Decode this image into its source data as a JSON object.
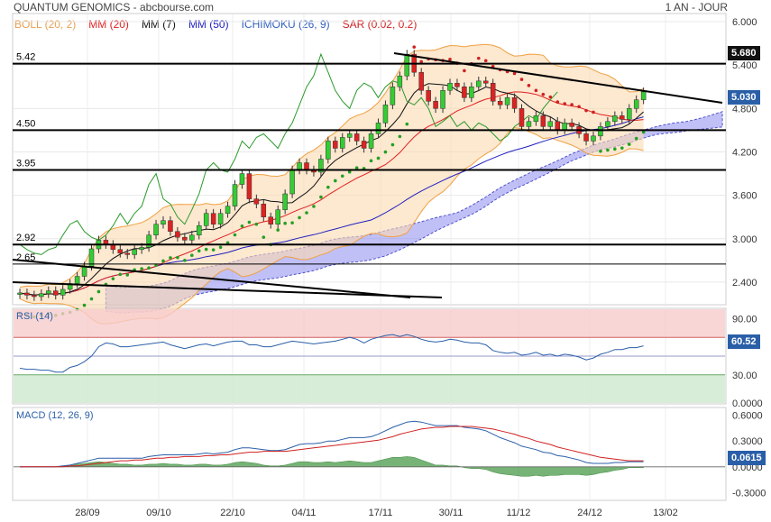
{
  "header": {
    "title": "QUANTUM GENOMICS - abcbourse.com",
    "period": "1 AN - JOUR"
  },
  "indicators": [
    {
      "label": "BOLL (20, 2)",
      "color": "#f0a040"
    },
    {
      "label": "MM (20)",
      "color": "#e02020"
    },
    {
      "label": "MM (7)",
      "color": "#111111"
    },
    {
      "label": "MM (50)",
      "color": "#2020c0"
    },
    {
      "label": "ICHIMOKU (26, 9)",
      "color": "#3060c0"
    },
    {
      "label": "SAR (0.02, 0.2)",
      "color": "#d02020"
    }
  ],
  "chart_data": [
    {
      "type": "candlestick",
      "title": "",
      "ylim": [
        2.1,
        6.1
      ],
      "y_ticks": [
        "6.000",
        "5.400",
        "4.800",
        "4.200",
        "3.600",
        "3.000",
        "2.400"
      ],
      "x_ticks": [
        "28/09",
        "09/10",
        "22/10",
        "04/11",
        "17/11",
        "30/11",
        "11/12",
        "24/12",
        "13/02"
      ],
      "last_price_label": "5.030",
      "resistance_label": "5.680",
      "levels": [
        {
          "label": "5.42",
          "value": 5.42
        },
        {
          "label": "4.50",
          "value": 4.5
        },
        {
          "label": "3.95",
          "value": 3.95
        },
        {
          "label": "2.92",
          "value": 2.92
        },
        {
          "label": "2.65",
          "value": 2.65
        }
      ],
      "close": [
        2.25,
        2.22,
        2.2,
        2.24,
        2.28,
        2.22,
        2.3,
        2.38,
        2.48,
        2.62,
        2.86,
        2.98,
        2.92,
        2.85,
        2.8,
        2.78,
        2.85,
        2.88,
        3.05,
        3.2,
        3.25,
        3.1,
        3.02,
        2.98,
        3.05,
        3.18,
        3.35,
        3.2,
        3.35,
        3.45,
        3.75,
        3.9,
        3.55,
        3.48,
        3.3,
        3.2,
        3.4,
        3.62,
        3.95,
        4.05,
        3.95,
        3.92,
        4.1,
        4.35,
        4.25,
        4.4,
        4.45,
        4.35,
        4.25,
        4.45,
        4.6,
        4.85,
        5.1,
        5.25,
        5.55,
        5.3,
        5.05,
        4.9,
        4.8,
        5.05,
        5.15,
        5.1,
        4.95,
        5.1,
        5.18,
        5.15,
        4.9,
        4.85,
        4.95,
        4.8,
        4.55,
        4.62,
        4.7,
        4.55,
        4.62,
        4.5,
        4.6,
        4.55,
        4.45,
        4.35,
        4.42,
        4.55,
        4.62,
        4.7,
        4.65,
        4.8,
        4.92,
        5.03
      ],
      "rsi": {
        "label": "RSI (14)",
        "last_label": "60.52",
        "y_ticks": [
          "90.00",
          "30.00",
          "0.0000"
        ],
        "values": [
          37,
          36,
          36,
          35,
          35,
          33,
          33,
          38,
          40,
          44,
          50,
          60,
          64,
          63,
          60,
          60,
          61,
          62,
          63,
          64,
          65,
          62,
          60,
          58,
          60,
          62,
          63,
          61,
          63,
          65,
          66,
          66,
          62,
          62,
          60,
          60,
          62,
          64,
          66,
          65,
          64,
          63,
          64,
          65,
          66,
          68,
          70,
          68,
          64,
          68,
          70,
          72,
          73,
          71,
          73,
          71,
          68,
          66,
          65,
          66,
          68,
          67,
          65,
          64,
          64,
          62,
          56,
          54,
          53,
          54,
          51,
          52,
          54,
          51,
          52,
          50,
          52,
          51,
          49,
          46,
          48,
          52,
          54,
          57,
          57,
          59,
          59,
          61
        ]
      },
      "macd": {
        "label": "MACD (12, 26, 9)",
        "last_label": "0.0615",
        "y_ticks": [
          "0.6000",
          "0.3000",
          "0.0000",
          "-0.3000"
        ],
        "macd": [
          0.0,
          0.0,
          0.0,
          0.0,
          0.0,
          0.0,
          0.01,
          0.02,
          0.04,
          0.06,
          0.08,
          0.1,
          0.1,
          0.1,
          0.1,
          0.1,
          0.1,
          0.1,
          0.12,
          0.13,
          0.14,
          0.14,
          0.14,
          0.14,
          0.14,
          0.15,
          0.16,
          0.15,
          0.16,
          0.17,
          0.2,
          0.22,
          0.22,
          0.21,
          0.2,
          0.19,
          0.19,
          0.2,
          0.23,
          0.26,
          0.27,
          0.27,
          0.28,
          0.3,
          0.3,
          0.32,
          0.34,
          0.34,
          0.34,
          0.35,
          0.38,
          0.42,
          0.46,
          0.49,
          0.52,
          0.53,
          0.52,
          0.5,
          0.48,
          0.48,
          0.48,
          0.48,
          0.46,
          0.45,
          0.44,
          0.42,
          0.38,
          0.34,
          0.31,
          0.28,
          0.24,
          0.22,
          0.2,
          0.17,
          0.16,
          0.13,
          0.12,
          0.1,
          0.08,
          0.05,
          0.04,
          0.04,
          0.04,
          0.05,
          0.05,
          0.06,
          0.06,
          0.06
        ],
        "signal": [
          0.0,
          0.0,
          0.0,
          0.0,
          0.0,
          0.0,
          0.0,
          0.01,
          0.01,
          0.02,
          0.03,
          0.04,
          0.05,
          0.06,
          0.07,
          0.07,
          0.08,
          0.08,
          0.09,
          0.1,
          0.1,
          0.11,
          0.11,
          0.12,
          0.12,
          0.12,
          0.13,
          0.13,
          0.14,
          0.14,
          0.15,
          0.16,
          0.17,
          0.17,
          0.18,
          0.18,
          0.18,
          0.18,
          0.19,
          0.2,
          0.21,
          0.22,
          0.23,
          0.24,
          0.25,
          0.26,
          0.27,
          0.28,
          0.29,
          0.3,
          0.31,
          0.33,
          0.35,
          0.38,
          0.4,
          0.42,
          0.44,
          0.45,
          0.46,
          0.46,
          0.47,
          0.47,
          0.47,
          0.47,
          0.46,
          0.45,
          0.44,
          0.42,
          0.4,
          0.38,
          0.35,
          0.33,
          0.3,
          0.28,
          0.26,
          0.23,
          0.21,
          0.19,
          0.17,
          0.15,
          0.13,
          0.11,
          0.1,
          0.09,
          0.08,
          0.07,
          0.07,
          0.07
        ]
      }
    }
  ]
}
